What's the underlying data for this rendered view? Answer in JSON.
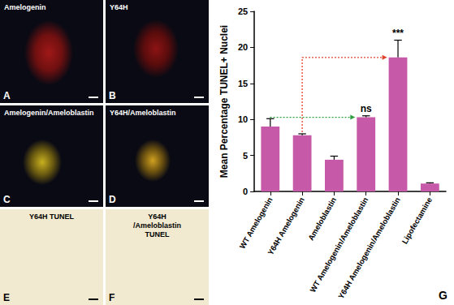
{
  "panels": [
    {
      "letter": "A",
      "label": "Amelogenin"
    },
    {
      "letter": "B",
      "label": "Y64H"
    },
    {
      "letter": "C",
      "label": "Amelogenin/Ameloblastin"
    },
    {
      "letter": "D",
      "label": "Y64H/Ameloblastin"
    },
    {
      "letter": "E",
      "label": "Y64H TUNEL"
    },
    {
      "letter": "F",
      "label": "Y64H /Ameloblastin TUNEL"
    }
  ],
  "chart_letter": "G",
  "chart_data": {
    "type": "bar",
    "y_label": "Mean Percentage TUNEL+ Nuclei",
    "categories": [
      "WT Amelogenin",
      "Y64H Amelogenin",
      "Ameloblastin",
      "WT Amelogenin/Ameloblastin",
      "Y64H Amelogenin/Ameloblastin",
      "Lipofectamine"
    ],
    "values": [
      9.0,
      7.8,
      4.4,
      10.3,
      18.6,
      1.1
    ],
    "errors": [
      1.1,
      0.2,
      0.5,
      0.2,
      2.4,
      0.1
    ],
    "color": "#c75aa8",
    "ylim": [
      0,
      25
    ],
    "yticks": [
      0,
      5,
      10,
      15,
      20,
      25
    ],
    "grid": false,
    "annotations": [
      {
        "category": "WT Amelogenin/Ameloblastin",
        "text": "ns"
      },
      {
        "category": "Y64H Amelogenin/Ameloblastin",
        "text": "***"
      }
    ],
    "comparisons": [
      {
        "from": "WT Amelogenin",
        "to": "WT Amelogenin/Ameloblastin",
        "color": "#2e9e3e"
      },
      {
        "from": "Y64H Amelogenin",
        "to": "Y64H Amelogenin/Ameloblastin",
        "color": "#e0422a"
      }
    ]
  }
}
